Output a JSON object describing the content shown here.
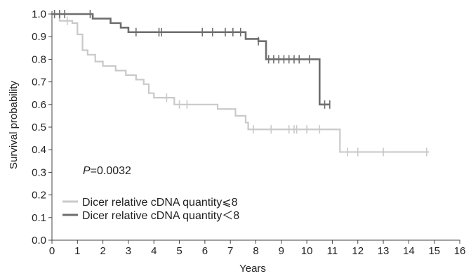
{
  "chart_data": {
    "type": "line",
    "subtype": "kaplan-meier",
    "title": "",
    "xlabel": "Years",
    "ylabel": "Survival probability",
    "xlim": [
      0,
      16
    ],
    "ylim": [
      0.0,
      1.0
    ],
    "xticks": [
      "0",
      "1",
      "2",
      "3",
      "4",
      "5",
      "6",
      "7",
      "8",
      "9",
      "10",
      "11",
      "12",
      "13",
      "14",
      "15",
      "16"
    ],
    "yticks": [
      "0.0",
      "0.1",
      "0.2",
      "0.3",
      "0.4",
      "0.5",
      "0.6",
      "0.7",
      "0.8",
      "0.9",
      "1.0"
    ],
    "grid": false,
    "annotation": {
      "p_italic": "P",
      "p_value": "=0.0032"
    },
    "legend_position": "lower-left",
    "series": [
      {
        "name": "Dicer relative cDNA quantity⩽8",
        "color": "#c9c9c9",
        "steps": [
          [
            0,
            1.0
          ],
          [
            0.3,
            0.97
          ],
          [
            0.8,
            0.96
          ],
          [
            1.0,
            0.91
          ],
          [
            1.2,
            0.84
          ],
          [
            1.4,
            0.82
          ],
          [
            1.7,
            0.79
          ],
          [
            2.0,
            0.77
          ],
          [
            2.5,
            0.75
          ],
          [
            2.9,
            0.73
          ],
          [
            3.3,
            0.71
          ],
          [
            3.6,
            0.69
          ],
          [
            3.8,
            0.65
          ],
          [
            4.0,
            0.63
          ],
          [
            4.8,
            0.6
          ],
          [
            6.5,
            0.58
          ],
          [
            7.2,
            0.55
          ],
          [
            7.6,
            0.52
          ],
          [
            7.7,
            0.49
          ],
          [
            11.3,
            0.39
          ],
          [
            14.8,
            0.39
          ]
        ],
        "censored": [
          [
            0.6,
            0.97
          ],
          [
            4.5,
            0.63
          ],
          [
            5.0,
            0.6
          ],
          [
            5.3,
            0.6
          ],
          [
            7.9,
            0.49
          ],
          [
            8.6,
            0.49
          ],
          [
            9.3,
            0.49
          ],
          [
            9.5,
            0.49
          ],
          [
            9.6,
            0.49
          ],
          [
            10.0,
            0.49
          ],
          [
            10.5,
            0.49
          ],
          [
            11.6,
            0.39
          ],
          [
            12.0,
            0.39
          ],
          [
            13.0,
            0.39
          ],
          [
            14.7,
            0.39
          ]
        ]
      },
      {
        "name": "Dicer relative cDNA quantity＜8",
        "color": "#6e6e6e",
        "steps": [
          [
            0,
            1.0
          ],
          [
            1.6,
            0.98
          ],
          [
            2.3,
            0.96
          ],
          [
            2.7,
            0.94
          ],
          [
            3.0,
            0.92
          ],
          [
            7.6,
            0.89
          ],
          [
            8.1,
            0.88
          ],
          [
            8.4,
            0.8
          ],
          [
            10.5,
            0.6
          ],
          [
            10.9,
            0.6
          ]
        ],
        "censored": [
          [
            0.1,
            1.0
          ],
          [
            0.3,
            1.0
          ],
          [
            0.5,
            1.0
          ],
          [
            1.5,
            1.0
          ],
          [
            3.3,
            0.92
          ],
          [
            4.2,
            0.92
          ],
          [
            4.3,
            0.92
          ],
          [
            5.9,
            0.92
          ],
          [
            6.3,
            0.92
          ],
          [
            6.8,
            0.92
          ],
          [
            7.1,
            0.92
          ],
          [
            7.4,
            0.92
          ],
          [
            8.1,
            0.88
          ],
          [
            8.5,
            0.8
          ],
          [
            8.7,
            0.8
          ],
          [
            8.9,
            0.8
          ],
          [
            9.1,
            0.8
          ],
          [
            9.3,
            0.8
          ],
          [
            9.5,
            0.8
          ],
          [
            9.7,
            0.8
          ],
          [
            10.1,
            0.8
          ],
          [
            10.7,
            0.6
          ],
          [
            10.9,
            0.6
          ]
        ]
      }
    ]
  }
}
